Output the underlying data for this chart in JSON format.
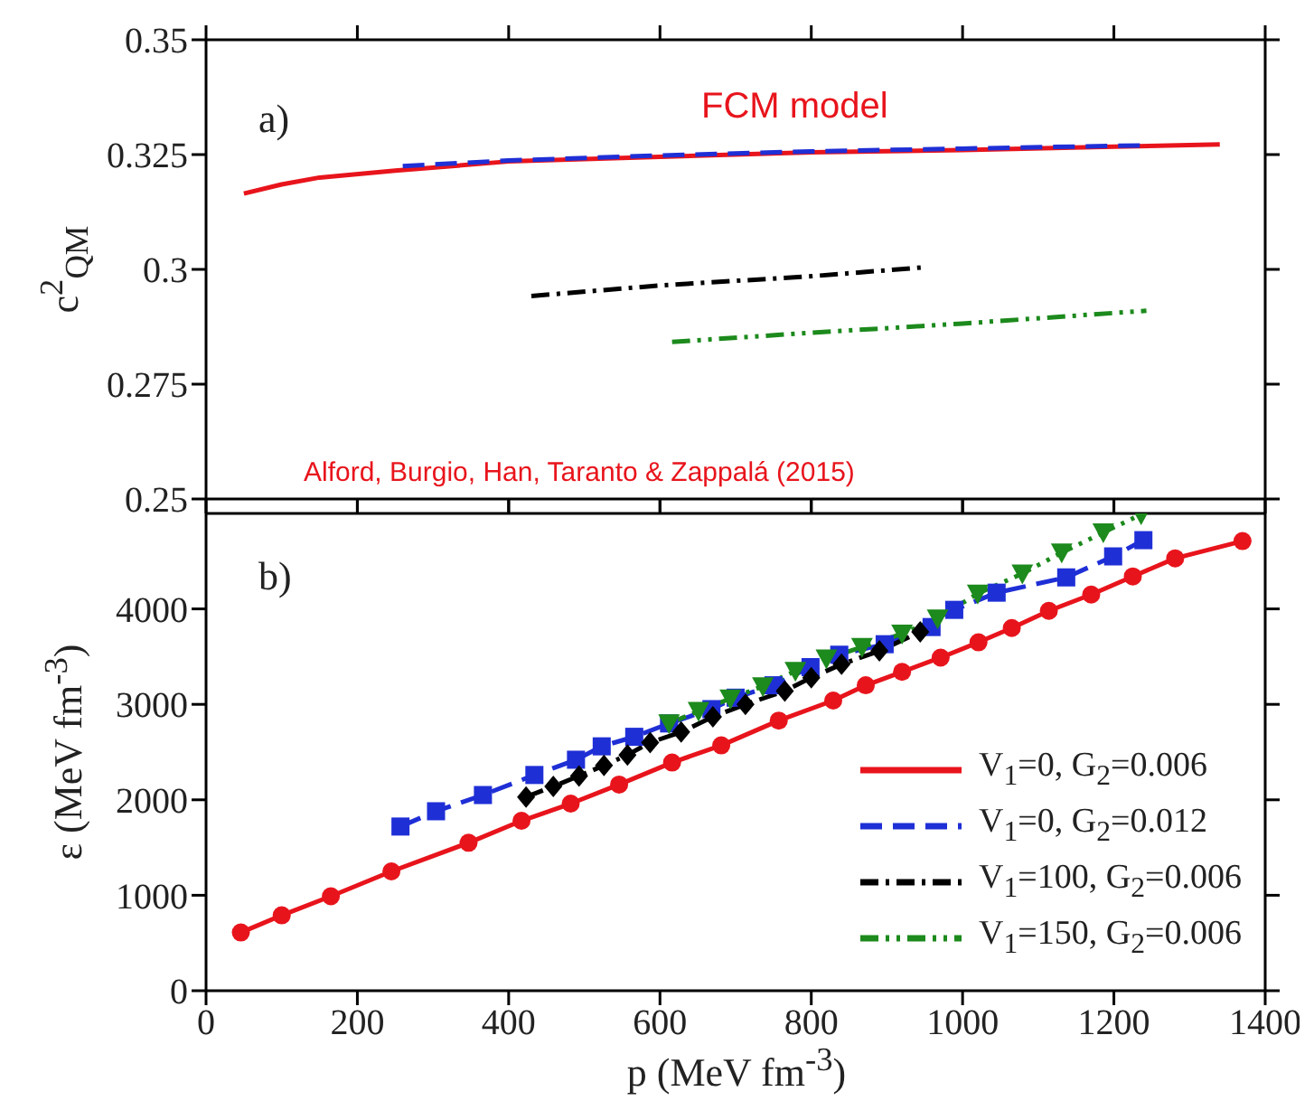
{
  "chart_data": [
    {
      "type": "line",
      "ylabel": "c$^{2}$$_{QM}$",
      "annotations": [
        "a)",
        "FCM model",
        "Alford, Burgio, Han, Taranto & Zappalá (2015)"
      ],
      "xlim": [
        0,
        1400
      ],
      "xticks": [
        0,
        200,
        400,
        600,
        800,
        1000,
        1200,
        1400
      ],
      "ylim": [
        0.25,
        0.35
      ],
      "yticks": [
        0.25,
        0.275,
        0.3,
        0.325,
        0.35
      ],
      "tick_labels": "y",
      "series": [
        {
          "color": "#e8141c",
          "line_style": "solid",
          "x": [
            50,
            100,
            150,
            250,
            400,
            600,
            800,
            1000,
            1200,
            1340
          ],
          "values": [
            0.3165,
            0.3185,
            0.32,
            0.3215,
            0.3235,
            0.3245,
            0.3255,
            0.326,
            0.3267,
            0.3272
          ]
        },
        {
          "color": "#1f2fd6",
          "line_style": "dashed",
          "x": [
            260,
            400,
            600,
            800,
            1000,
            1240
          ],
          "values": [
            0.3225,
            0.3237,
            0.3248,
            0.3257,
            0.3263,
            0.327
          ]
        },
        {
          "color": "#000000",
          "line_style": "dashdot",
          "x": [
            430,
            600,
            800,
            945
          ],
          "values": [
            0.2942,
            0.2965,
            0.2985,
            0.3004
          ]
        },
        {
          "color": "#1c8a1c",
          "line_style": "dashdotdot",
          "x": [
            616,
            800,
            1000,
            1243
          ],
          "values": [
            0.2842,
            0.2862,
            0.2882,
            0.291
          ]
        }
      ]
    },
    {
      "type": "line",
      "xlabel": "p (MeV fm$^{-3}$)",
      "ylabel": "ε (MeV fm$^{-3}$)",
      "annotations": [
        "b)"
      ],
      "xlim": [
        0,
        1400
      ],
      "xticks": [
        0,
        200,
        400,
        600,
        800,
        1000,
        1200,
        1400
      ],
      "ylim": [
        0,
        5000
      ],
      "yticks": [
        0,
        1000,
        2000,
        3000,
        4000
      ],
      "legend": "bottom right",
      "series": [
        {
          "name": "V$_{1}$=0, G$_{2}$=0.006",
          "color": "#e8141c",
          "line_style": "solid",
          "marker": "circle",
          "x": [
            46,
            100,
            165,
            245,
            347,
            417,
            482,
            546,
            616,
            681,
            757,
            829,
            872,
            920,
            971,
            1021,
            1065,
            1114,
            1170,
            1225,
            1281,
            1370
          ],
          "values": [
            610,
            790,
            990,
            1250,
            1550,
            1780,
            1960,
            2160,
            2390,
            2570,
            2830,
            3040,
            3200,
            3340,
            3490,
            3650,
            3800,
            3980,
            4150,
            4340,
            4530,
            4710
          ]
        },
        {
          "name": "V$_{1}$=0, G$_{2}$=0.012",
          "color": "#1f2fd6",
          "line_style": "dashed",
          "marker": "square",
          "x": [
            257,
            304,
            366,
            434,
            489,
            523,
            566,
            612,
            668,
            700,
            750,
            799,
            837,
            897,
            959,
            989,
            1045,
            1137,
            1199,
            1239
          ],
          "values": [
            1720,
            1880,
            2050,
            2260,
            2420,
            2560,
            2660,
            2800,
            2950,
            3070,
            3200,
            3390,
            3520,
            3630,
            3810,
            3990,
            4170,
            4330,
            4550,
            4720
          ]
        },
        {
          "name": "V$_{1}$=100, G$_{2}$=0.006",
          "color": "#000000",
          "line_style": "dashdot",
          "marker": "diamond",
          "x": [
            423,
            459,
            493,
            526,
            557,
            587,
            628,
            670,
            713,
            765,
            800,
            840,
            890,
            944
          ],
          "values": [
            2030,
            2140,
            2250,
            2360,
            2470,
            2600,
            2710,
            2870,
            3000,
            3140,
            3280,
            3420,
            3560,
            3760
          ]
        },
        {
          "name": "V$_{1}$=150, G$_{2}$=0.006",
          "color": "#1c8a1c",
          "line_style": "dashdotdot",
          "marker": "triangle",
          "x": [
            612,
            651,
            693,
            736,
            779,
            820,
            867,
            920,
            967,
            1020,
            1079,
            1131,
            1186,
            1236
          ],
          "values": [
            2800,
            2930,
            3060,
            3190,
            3350,
            3480,
            3600,
            3740,
            3900,
            4160,
            4370,
            4590,
            4800,
            4990
          ]
        }
      ]
    }
  ]
}
